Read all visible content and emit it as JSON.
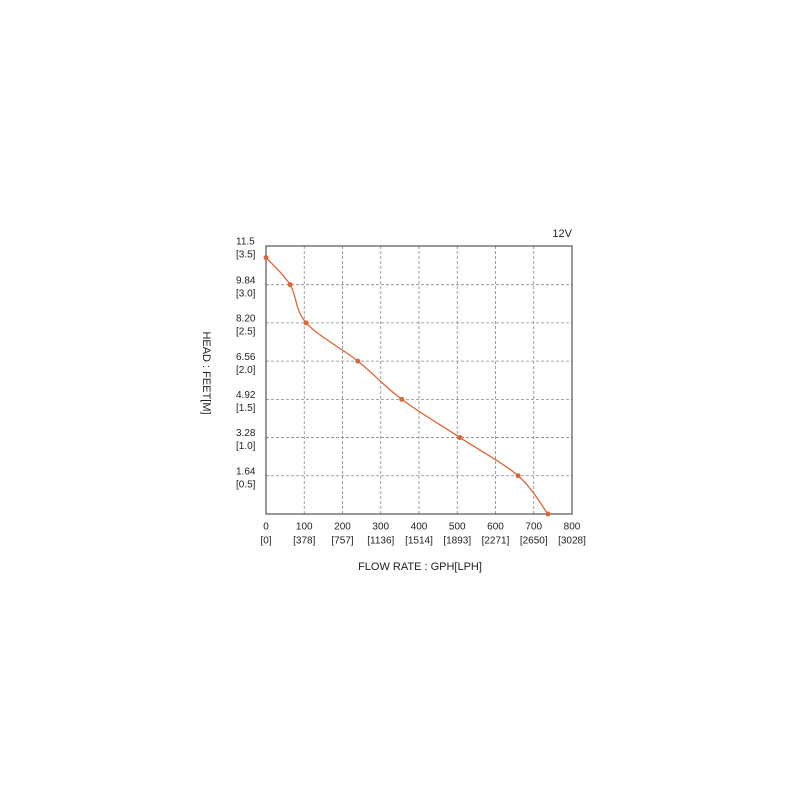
{
  "chart_data": {
    "type": "line",
    "x_label": "FLOW RATE : GPH[LPH]",
    "y_label": "HEAD : FEET[M]",
    "x": [
      0,
      63,
      105,
      240,
      355,
      507,
      659,
      737
    ],
    "series": [
      {
        "name": "12V",
        "color": "#d9673a",
        "values": [
          11.0,
          9.84,
          8.2,
          6.56,
          4.92,
          3.28,
          1.64,
          0
        ]
      }
    ],
    "xlim": [
      0,
      800
    ],
    "xticks": [
      0,
      100,
      200,
      300,
      400,
      500,
      600,
      700,
      800
    ],
    "x2ticks": [
      {
        "value": 0,
        "label": "[0]"
      },
      {
        "value": 100,
        "label": "[378]"
      },
      {
        "value": 200,
        "label": "[757]"
      },
      {
        "value": 300,
        "label": "[1136]"
      },
      {
        "value": 400,
        "label": "[1514]"
      },
      {
        "value": 500,
        "label": "[1893]"
      },
      {
        "value": 600,
        "label": "[2271]"
      },
      {
        "value": 700,
        "label": "[2650]"
      },
      {
        "value": 800,
        "label": "[3028]"
      }
    ],
    "ylim": [
      0,
      11.5
    ],
    "yticks": [
      1.64,
      3.28,
      4.92,
      6.56,
      {
        "value": 8.2,
        "label": "8.20"
      },
      9.84,
      11.5
    ],
    "y2ticks": [
      {
        "value": 1.64,
        "label": "[0.5]"
      },
      {
        "value": 3.28,
        "label": "[1.0]"
      },
      {
        "value": 4.92,
        "label": "[1.5]"
      },
      {
        "value": 6.56,
        "label": "[2.0]"
      },
      {
        "value": 8.2,
        "label": "[2.5]"
      },
      {
        "value": 9.84,
        "label": "[3.0]"
      },
      {
        "value": 11.5,
        "label": "[3.5]"
      }
    ],
    "grid": true
  }
}
